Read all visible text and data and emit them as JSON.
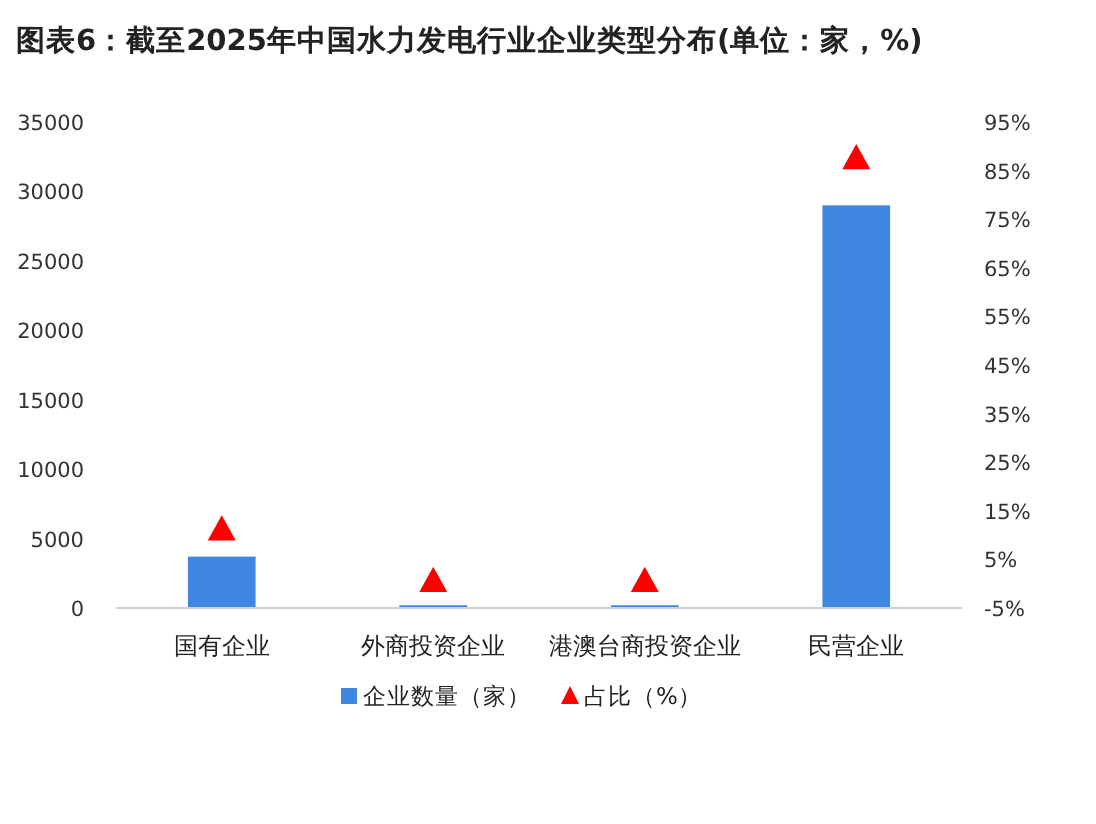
{
  "chart_data": {
    "type": "bar",
    "title": "图表6：截至2025年中国水力发电行业企业类型分布(单位：家，%)",
    "categories": [
      "国有企业",
      "外商投资企业",
      "港澳台商投资企业",
      "民营企业"
    ],
    "series": [
      {
        "name": "企业数量（家）",
        "color": "#3f87e0",
        "values": [
          3700,
          200,
          200,
          29000
        ]
      },
      {
        "name": "占比（%）",
        "type": "scatter",
        "axis": "y2",
        "marker": "triangle",
        "color": "#ff0000",
        "values": [
          11.2,
          0.6,
          0.6,
          87.6
        ]
      }
    ],
    "ylim": [
      0,
      35000
    ],
    "yticks": [
      0,
      5000,
      10000,
      15000,
      20000,
      25000,
      30000,
      35000
    ],
    "y2lim": [
      -5,
      95
    ],
    "y2ticks": [
      {
        "value": -5,
        "label": "-5%"
      },
      {
        "value": 5,
        "label": "5%"
      },
      {
        "value": 15,
        "label": "15%"
      },
      {
        "value": 25,
        "label": "25%"
      },
      {
        "value": 35,
        "label": "35%"
      },
      {
        "value": 45,
        "label": "45%"
      },
      {
        "value": 55,
        "label": "55%"
      },
      {
        "value": 65,
        "label": "65%"
      },
      {
        "value": 75,
        "label": "75%"
      },
      {
        "value": 85,
        "label": "85%"
      },
      {
        "value": 95,
        "label": "95%"
      }
    ],
    "legend": "bottom"
  }
}
